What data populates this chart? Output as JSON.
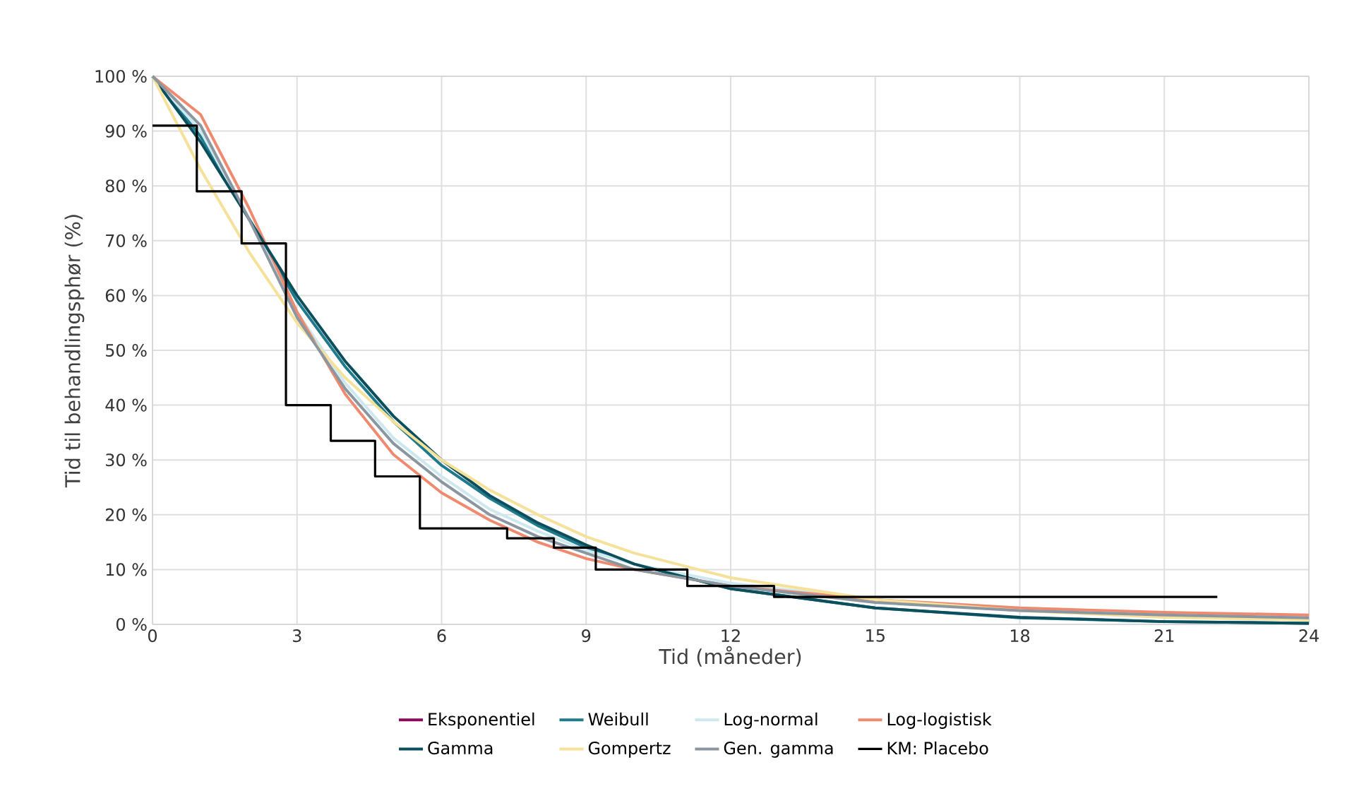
{
  "chart_data": {
    "type": "line",
    "xlabel": "Tid (måneder)",
    "ylabel": "Tid til behandlingsphør (%)",
    "xlim": [
      0,
      24
    ],
    "xticks": [
      0,
      3,
      6,
      9,
      12,
      15,
      18,
      21,
      24
    ],
    "ylim": [
      0,
      100
    ],
    "yticks": [
      {
        "value": 0,
        "label": "0 %"
      },
      {
        "value": 10,
        "label": "10 %"
      },
      {
        "value": 20,
        "label": "20 %"
      },
      {
        "value": 30,
        "label": "30 %"
      },
      {
        "value": 40,
        "label": "40 %"
      },
      {
        "value": 50,
        "label": "50 %"
      },
      {
        "value": 60,
        "label": "60 %"
      },
      {
        "value": 70,
        "label": "70 %"
      },
      {
        "value": 80,
        "label": "80 %"
      },
      {
        "value": 90,
        "label": "90 %"
      },
      {
        "value": 100,
        "label": "100 %"
      }
    ],
    "grid": true,
    "legend": "bottom",
    "marker": "none",
    "line_style": "solid",
    "x": [
      0,
      1,
      2,
      3,
      4,
      5,
      6,
      7,
      8,
      9,
      10,
      12,
      15,
      18,
      21,
      24
    ],
    "series": [
      {
        "name": "Eksponentiel",
        "color": "#8b0a5a",
        "values": [
          null,
          null,
          null,
          null,
          null,
          null,
          null,
          null,
          null,
          null,
          null,
          null,
          null,
          null,
          null,
          null
        ]
      },
      {
        "name": "Weibull",
        "color": "#1f7a8c",
        "values": [
          100,
          89,
          74,
          59,
          47,
          37,
          29,
          23,
          18,
          14,
          11,
          6.5,
          3,
          1.2,
          0.5,
          0.2
        ]
      },
      {
        "name": "Log-normal",
        "color": "#cde8ef",
        "values": [
          100,
          90,
          74,
          57,
          44,
          34,
          27,
          21,
          17,
          13.5,
          11,
          7.5,
          4.5,
          3,
          2,
          1.5
        ]
      },
      {
        "name": "Log-logistisk",
        "color": "#f08a6f",
        "values": [
          100,
          93,
          76,
          57,
          42,
          31,
          24,
          19,
          15,
          12,
          10,
          7,
          4.5,
          3,
          2.2,
          1.7
        ]
      },
      {
        "name": "Gamma",
        "color": "#0b4f5c",
        "values": [
          100,
          88,
          74,
          60,
          48,
          38,
          30,
          23.5,
          18.5,
          14.5,
          11,
          6.5,
          3,
          1.3,
          0.5,
          0.2
        ]
      },
      {
        "name": "Gompertz",
        "color": "#f5e199",
        "values": [
          100,
          83,
          68,
          55,
          45,
          37,
          30,
          24.5,
          20,
          16,
          13,
          8.5,
          4.5,
          2.5,
          1.3,
          0.8
        ]
      },
      {
        "name": "Gen. gamma",
        "color": "#8a96a0",
        "values": [
          100,
          91,
          74,
          56,
          43,
          33,
          26,
          20,
          16,
          13,
          10,
          7,
          4,
          2.5,
          1.7,
          1.2
        ]
      },
      {
        "name": "KM: Placebo",
        "type": "step",
        "color": "#000000",
        "x": [
          0,
          0.92,
          1.85,
          2.77,
          3.7,
          4.62,
          5.55,
          7.36,
          8.33,
          9.2,
          11.1,
          12.9,
          22.1
        ],
        "values": [
          91,
          79,
          69.5,
          40,
          33.5,
          27,
          17.5,
          15.7,
          14,
          10,
          7,
          5,
          5
        ]
      }
    ]
  }
}
